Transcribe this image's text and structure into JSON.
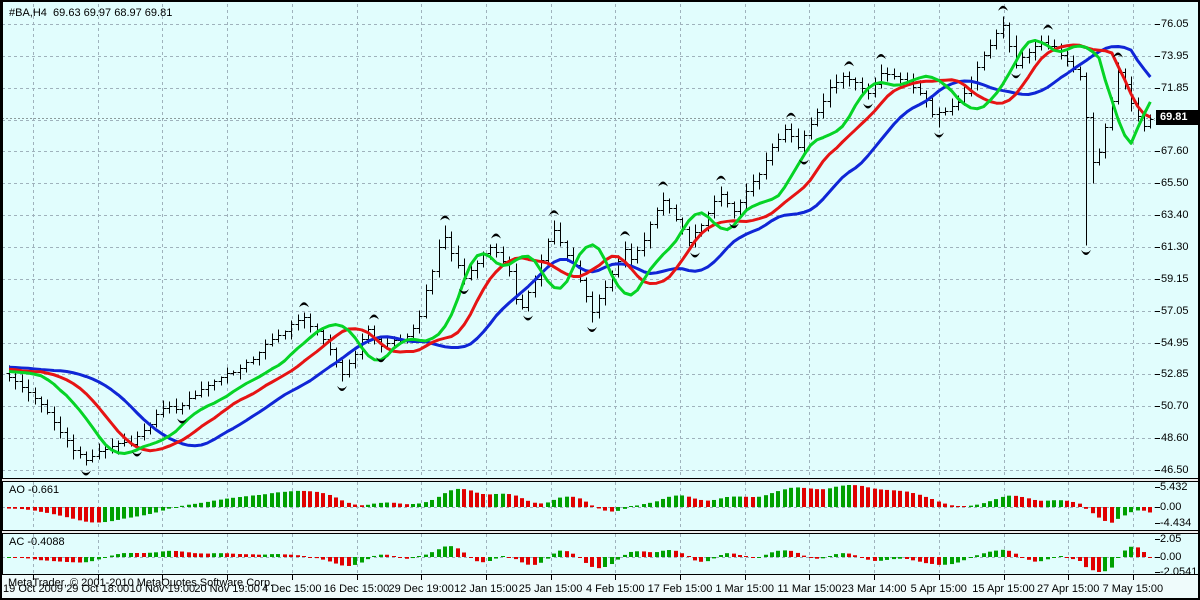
{
  "title": {
    "symbol_period": "#BA,H4",
    "ohlc": "69.63 69.97 68.97 69.81"
  },
  "watermark": "MetaTrader, © 2001-2010 MetaQuotes Software Corp.",
  "price_axis": {
    "labels": [
      "76.05",
      "73.95",
      "71.85",
      "67.60",
      "65.50",
      "63.40",
      "61.30",
      "59.15",
      "57.05",
      "54.95",
      "52.85",
      "50.70",
      "48.60",
      "46.50"
    ],
    "current_price": "69.81"
  },
  "time_axis": {
    "labels": [
      "19 Oct 2009",
      "29 Oct 18:00",
      "10 Nov 19:00",
      "20 Nov 19:00",
      "4 Dec 15:00",
      "16 Dec 15:00",
      "29 Dec 19:00",
      "12 Jan 15:00",
      "25 Jan 15:00",
      "4 Feb 15:00",
      "17 Feb 15:00",
      "1 Mar 15:00",
      "11 Mar 15:00",
      "23 Mar 14:00",
      "5 Apr 15:00",
      "15 Apr 15:00",
      "27 Apr 15:00",
      "7 May 15:00"
    ]
  },
  "panels": [
    {
      "name": "AO",
      "label": "AO -0.661",
      "current": -0.661,
      "axis": [
        "5.432",
        "0.00",
        "-4.434"
      ]
    },
    {
      "name": "AC",
      "label": "AC -0.4088",
      "current": -0.4088,
      "axis": [
        "2.05",
        "0.00",
        "-2.0541"
      ]
    }
  ],
  "colors": {
    "background": "#E1FDFD",
    "grid": "#9FB2BC",
    "bar": "#000000",
    "histogram_up": "#00A000",
    "histogram_down": "#E00000",
    "alligator_jaw": "#1026D6",
    "alligator_teeth": "#E61414",
    "alligator_lips": "#06D426",
    "fractal": "#000000",
    "bid_line": "#8C9C9C",
    "price_tag_bg": "#000000",
    "price_tag_text": "#FFFFFF"
  },
  "chart_data": {
    "type": "bar",
    "subtype": "ohlc-candlestick-with-indicators",
    "symbol": "#BA",
    "timeframe": "H4",
    "current_bar": {
      "open": 69.63,
      "high": 69.97,
      "low": 68.97,
      "close": 69.81
    },
    "y_axis": {
      "top_value": 76.05,
      "bottom_value": 46.5,
      "gridline_slots": 14
    },
    "indicators": {
      "alligator": {
        "jaw": {
          "period": 13,
          "shift": 8,
          "color_key": "alligator_jaw"
        },
        "teeth": {
          "period": 8,
          "shift": 5,
          "color_key": "alligator_teeth"
        },
        "lips": {
          "period": 5,
          "shift": 3,
          "color_key": "alligator_lips"
        }
      },
      "fractals": true,
      "awesome_oscillator": {
        "current": -0.661,
        "axis_max": 5.432,
        "axis_min": -4.434
      },
      "accelerator_oscillator": {
        "current": -0.4088,
        "axis_max": 2.05,
        "axis_min": -2.0541
      }
    },
    "prehistory": {
      "bars": 40,
      "start": 53.9,
      "end": 52.9
    },
    "close_waypoints": [
      [
        0,
        52.7
      ],
      [
        2,
        52.0
      ],
      [
        4,
        51.3
      ],
      [
        6,
        50.3
      ],
      [
        8,
        49.0
      ],
      [
        10,
        47.9
      ],
      [
        12,
        47.15
      ],
      [
        13,
        47.45
      ],
      [
        15,
        47.9
      ],
      [
        17,
        48.35
      ],
      [
        19,
        48.2
      ],
      [
        21,
        49.1
      ],
      [
        23,
        50.2
      ],
      [
        25,
        50.8
      ],
      [
        26,
        50.5
      ],
      [
        28,
        51.2
      ],
      [
        30,
        51.9
      ],
      [
        32,
        52.4
      ],
      [
        34,
        52.9
      ],
      [
        36,
        53.2
      ],
      [
        38,
        53.9
      ],
      [
        40,
        54.8
      ],
      [
        42,
        55.4
      ],
      [
        44,
        56.2
      ],
      [
        46,
        56.6
      ],
      [
        48,
        55.7
      ],
      [
        50,
        54.4
      ],
      [
        52,
        52.9
      ],
      [
        54,
        54.3
      ],
      [
        56,
        55.9
      ],
      [
        57,
        55.2
      ],
      [
        58,
        54.7
      ],
      [
        60,
        55.1
      ],
      [
        62,
        55.3
      ],
      [
        63,
        55.8
      ],
      [
        64,
        56.8
      ],
      [
        65,
        58.4
      ],
      [
        66,
        59.8
      ],
      [
        67,
        61.2
      ],
      [
        68,
        61.9
      ],
      [
        69,
        60.9
      ],
      [
        71,
        59.2
      ],
      [
        73,
        60.3
      ],
      [
        75,
        61.3
      ],
      [
        76,
        61.0
      ],
      [
        78,
        59.6
      ],
      [
        79,
        57.9
      ],
      [
        80,
        57.4
      ],
      [
        82,
        59.2
      ],
      [
        84,
        61.6
      ],
      [
        85,
        62.4
      ],
      [
        86,
        61.6
      ],
      [
        88,
        60.1
      ],
      [
        90,
        58.1
      ],
      [
        91,
        57.0
      ],
      [
        93,
        58.6
      ],
      [
        95,
        60.3
      ],
      [
        96,
        61.2
      ],
      [
        97,
        60.4
      ],
      [
        99,
        61.8
      ],
      [
        101,
        63.8
      ],
      [
        102,
        64.4
      ],
      [
        104,
        63.2
      ],
      [
        106,
        61.6
      ],
      [
        108,
        62.8
      ],
      [
        110,
        64.2
      ],
      [
        111,
        64.8
      ],
      [
        113,
        63.6
      ],
      [
        115,
        64.9
      ],
      [
        117,
        66.2
      ],
      [
        119,
        67.8
      ],
      [
        121,
        69.2
      ],
      [
        123,
        67.9
      ],
      [
        125,
        69.4
      ],
      [
        127,
        70.9
      ],
      [
        128,
        71.9
      ],
      [
        130,
        72.7
      ],
      [
        132,
        72.1
      ],
      [
        134,
        71.5
      ],
      [
        136,
        72.9
      ],
      [
        138,
        72.6
      ],
      [
        140,
        72.3
      ],
      [
        142,
        71.6
      ],
      [
        144,
        70.2
      ],
      [
        146,
        70.3
      ],
      [
        148,
        70.9
      ],
      [
        150,
        72.2
      ],
      [
        152,
        74.0
      ],
      [
        154,
        75.5
      ],
      [
        155,
        75.9
      ],
      [
        157,
        73.4
      ],
      [
        159,
        74.3
      ],
      [
        161,
        74.9
      ],
      [
        163,
        74.5
      ],
      [
        165,
        73.6
      ],
      [
        166,
        73.0
      ],
      [
        167,
        72.5
      ],
      [
        168,
        70.0
      ],
      [
        169,
        66.8
      ],
      [
        170,
        67.5
      ],
      [
        171,
        69.3
      ],
      [
        172,
        71.0
      ],
      [
        173,
        72.9
      ],
      [
        174,
        72.0
      ],
      [
        175,
        70.9
      ],
      [
        176,
        69.9
      ],
      [
        177,
        69.2
      ],
      [
        178,
        69.81
      ]
    ],
    "wick_overrides": {
      "12": {
        "low": 46.8
      },
      "46": {
        "high": 56.95
      },
      "52": {
        "low": 52.4
      },
      "68": {
        "high": 62.7
      },
      "85": {
        "high": 63.05
      },
      "91": {
        "low": 56.3
      },
      "102": {
        "high": 64.95
      },
      "136": {
        "high": 73.4
      },
      "145": {
        "low": 69.2
      },
      "155": {
        "high": 76.6
      },
      "157": {
        "high": 75.35
      },
      "161": {
        "high": 75.3
      },
      "168": {
        "low": 61.4
      },
      "169": {
        "low": 65.5
      },
      "173": {
        "high": 73.5
      }
    }
  }
}
